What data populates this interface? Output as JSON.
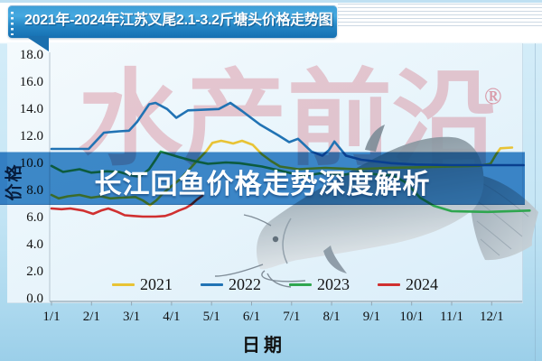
{
  "header": {
    "title": "2021年-2024年江苏叉尾2.1-3.2斤塘头价格走势图"
  },
  "overlay": {
    "headline": "长江回鱼价格走势深度解析"
  },
  "watermark": {
    "text": "水产前沿",
    "registered": "®"
  },
  "colors": {
    "c2021": "#E8C335",
    "c2022": "#2173B4",
    "c2023": "#2FA64F",
    "c2024": "#D03030",
    "banner_blue": "#418cca",
    "title_banner_dark": "#1670b2"
  },
  "chart_data": {
    "type": "line",
    "title": "2021年-2024年江苏叉尾2.1-3.2斤塘头价格走势图",
    "xlabel": "日期",
    "ylabel": "价格",
    "x_ticks": [
      "1/1",
      "2/1",
      "3/1",
      "4/1",
      "5/1",
      "6/1",
      "7/1",
      "8/1",
      "9/1",
      "10/1",
      "11/1",
      "12/1"
    ],
    "y_ticks": [
      0,
      2,
      4,
      6,
      8,
      10,
      12,
      14,
      16,
      18
    ],
    "ylim": [
      0,
      18
    ],
    "grid": false,
    "legend_position": "bottom",
    "x_unit": "month (1 = Jan 1, 13 = Dec 31)",
    "series": [
      {
        "name": "2021",
        "color": "#E8C335",
        "points": [
          [
            1.0,
            7.7
          ],
          [
            1.18,
            7.45
          ],
          [
            1.41,
            7.6
          ],
          [
            1.7,
            7.7
          ],
          [
            1.99,
            7.5
          ],
          [
            2.24,
            7.6
          ],
          [
            2.47,
            7.45
          ],
          [
            2.76,
            7.5
          ],
          [
            3.1,
            7.55
          ],
          [
            3.28,
            7.3
          ],
          [
            3.46,
            6.95
          ],
          [
            3.62,
            7.3
          ],
          [
            3.78,
            7.8
          ],
          [
            4.0,
            8.35
          ],
          [
            4.23,
            8.9
          ],
          [
            4.45,
            9.6
          ],
          [
            4.63,
            10.2
          ],
          [
            4.86,
            10.9
          ],
          [
            5.02,
            11.55
          ],
          [
            5.24,
            11.7
          ],
          [
            5.4,
            11.6
          ],
          [
            5.54,
            11.5
          ],
          [
            5.76,
            11.7
          ],
          [
            6.03,
            11.4
          ],
          [
            6.26,
            10.7
          ],
          [
            6.49,
            10.2
          ],
          [
            6.71,
            9.8
          ],
          [
            7.16,
            9.6
          ],
          [
            7.84,
            9.7
          ],
          [
            8.63,
            9.6
          ],
          [
            9.42,
            9.7
          ],
          [
            10.21,
            9.75
          ],
          [
            11.0,
            9.8
          ],
          [
            11.68,
            9.85
          ],
          [
            11.97,
            10.0
          ],
          [
            12.11,
            10.7
          ],
          [
            12.22,
            11.15
          ],
          [
            12.51,
            11.2
          ]
        ]
      },
      {
        "name": "2022",
        "color": "#2173B4",
        "points": [
          [
            1.0,
            11.1
          ],
          [
            1.93,
            11.1
          ],
          [
            2.31,
            12.3
          ],
          [
            2.69,
            12.4
          ],
          [
            2.94,
            12.45
          ],
          [
            3.14,
            13.1
          ],
          [
            3.44,
            14.4
          ],
          [
            3.6,
            14.5
          ],
          [
            3.89,
            14.05
          ],
          [
            4.12,
            13.4
          ],
          [
            4.41,
            13.95
          ],
          [
            5.18,
            14.05
          ],
          [
            5.47,
            14.5
          ],
          [
            5.76,
            13.9
          ],
          [
            6.21,
            12.9
          ],
          [
            6.67,
            12.1
          ],
          [
            6.94,
            11.6
          ],
          [
            7.16,
            11.85
          ],
          [
            7.5,
            10.9
          ],
          [
            7.77,
            10.6
          ],
          [
            7.93,
            11.0
          ],
          [
            8.07,
            11.65
          ],
          [
            8.36,
            10.6
          ],
          [
            8.74,
            10.3
          ],
          [
            9.49,
            10.05
          ],
          [
            10.1,
            9.95
          ],
          [
            11.0,
            9.9
          ],
          [
            12.8,
            9.9
          ]
        ]
      },
      {
        "name": "2023",
        "color": "#2FA64F",
        "points": [
          [
            1.0,
            9.85
          ],
          [
            1.29,
            9.4
          ],
          [
            1.7,
            9.6
          ],
          [
            1.99,
            9.35
          ],
          [
            2.38,
            9.45
          ],
          [
            2.69,
            9.4
          ],
          [
            2.99,
            9.15
          ],
          [
            3.21,
            9.05
          ],
          [
            3.44,
            9.6
          ],
          [
            3.6,
            10.3
          ],
          [
            3.73,
            10.9
          ],
          [
            3.96,
            10.7
          ],
          [
            4.18,
            10.5
          ],
          [
            4.5,
            10.25
          ],
          [
            4.91,
            10.0
          ],
          [
            5.36,
            10.1
          ],
          [
            5.7,
            10.05
          ],
          [
            6.26,
            9.8
          ],
          [
            6.71,
            9.5
          ],
          [
            7.28,
            9.1
          ],
          [
            7.73,
            9.3
          ],
          [
            8.29,
            9.2
          ],
          [
            8.74,
            9.35
          ],
          [
            9.19,
            9.2
          ],
          [
            9.53,
            9.15
          ],
          [
            9.87,
            8.6
          ],
          [
            10.21,
            7.5
          ],
          [
            10.55,
            6.9
          ],
          [
            11.0,
            6.5
          ],
          [
            11.9,
            6.45
          ],
          [
            12.95,
            6.55
          ]
        ]
      },
      {
        "name": "2024",
        "color": "#D03030",
        "points": [
          [
            1.0,
            6.7
          ],
          [
            1.25,
            6.65
          ],
          [
            1.47,
            6.7
          ],
          [
            1.79,
            6.55
          ],
          [
            2.04,
            6.3
          ],
          [
            2.24,
            6.55
          ],
          [
            2.42,
            6.7
          ],
          [
            2.65,
            6.45
          ],
          [
            2.83,
            6.2
          ],
          [
            3.05,
            6.15
          ],
          [
            3.28,
            6.1
          ],
          [
            3.6,
            6.1
          ],
          [
            3.84,
            6.15
          ],
          [
            4.0,
            6.3
          ],
          [
            4.18,
            6.55
          ],
          [
            4.36,
            6.75
          ],
          [
            4.5,
            7.0
          ],
          [
            4.63,
            7.35
          ],
          [
            4.77,
            7.65
          ]
        ]
      }
    ]
  }
}
